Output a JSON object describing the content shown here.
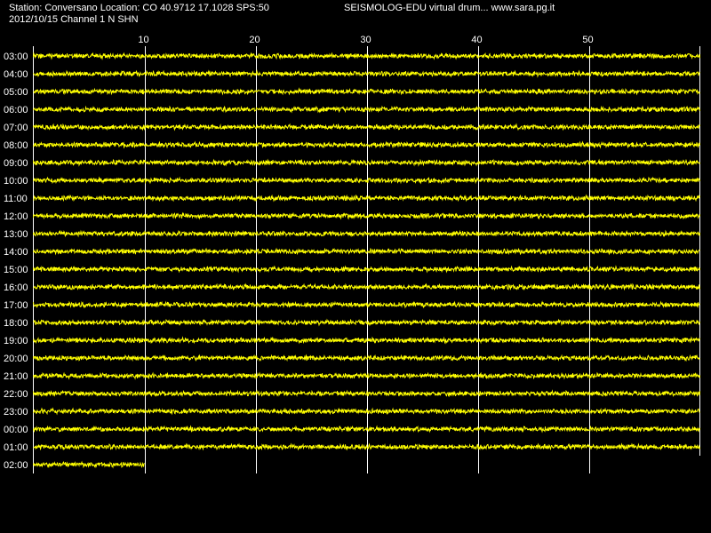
{
  "header": {
    "station_line": "Station: Conversano Location: CO 40.9712 17.1028 SPS:50",
    "date_line": "2012/10/15  Channel 1 N SHN",
    "title_right": "SEISMOLOG-EDU virtual drum... www.sara.pg.it"
  },
  "colors": {
    "background": "#000000",
    "trace": "#ffff00",
    "grid": "#ffffff",
    "text": "#ffffff"
  },
  "chart_data": {
    "type": "line",
    "title": "",
    "xlabel": "",
    "ylabel": "",
    "x_unit_range": [
      0,
      60
    ],
    "x_ticks": [
      10,
      20,
      30,
      40,
      50
    ],
    "x_tick_labels": [
      "10",
      "20",
      "30",
      "40",
      "50"
    ],
    "rows": [
      {
        "label": "03:00",
        "minutes_recorded": 60
      },
      {
        "label": "04:00",
        "minutes_recorded": 60
      },
      {
        "label": "05:00",
        "minutes_recorded": 60
      },
      {
        "label": "06:00",
        "minutes_recorded": 60
      },
      {
        "label": "07:00",
        "minutes_recorded": 60
      },
      {
        "label": "08:00",
        "minutes_recorded": 60
      },
      {
        "label": "09:00",
        "minutes_recorded": 60
      },
      {
        "label": "10:00",
        "minutes_recorded": 60
      },
      {
        "label": "11:00",
        "minutes_recorded": 60
      },
      {
        "label": "12:00",
        "minutes_recorded": 60
      },
      {
        "label": "13:00",
        "minutes_recorded": 60
      },
      {
        "label": "14:00",
        "minutes_recorded": 60
      },
      {
        "label": "15:00",
        "minutes_recorded": 60
      },
      {
        "label": "16:00",
        "minutes_recorded": 60
      },
      {
        "label": "17:00",
        "minutes_recorded": 60
      },
      {
        "label": "18:00",
        "minutes_recorded": 60
      },
      {
        "label": "19:00",
        "minutes_recorded": 60
      },
      {
        "label": "20:00",
        "minutes_recorded": 60
      },
      {
        "label": "21:00",
        "minutes_recorded": 60
      },
      {
        "label": "22:00",
        "minutes_recorded": 60
      },
      {
        "label": "23:00",
        "minutes_recorded": 60
      },
      {
        "label": "00:00",
        "minutes_recorded": 60
      },
      {
        "label": "01:00",
        "minutes_recorded": 60
      },
      {
        "label": "02:00",
        "minutes_recorded": 10
      }
    ]
  }
}
